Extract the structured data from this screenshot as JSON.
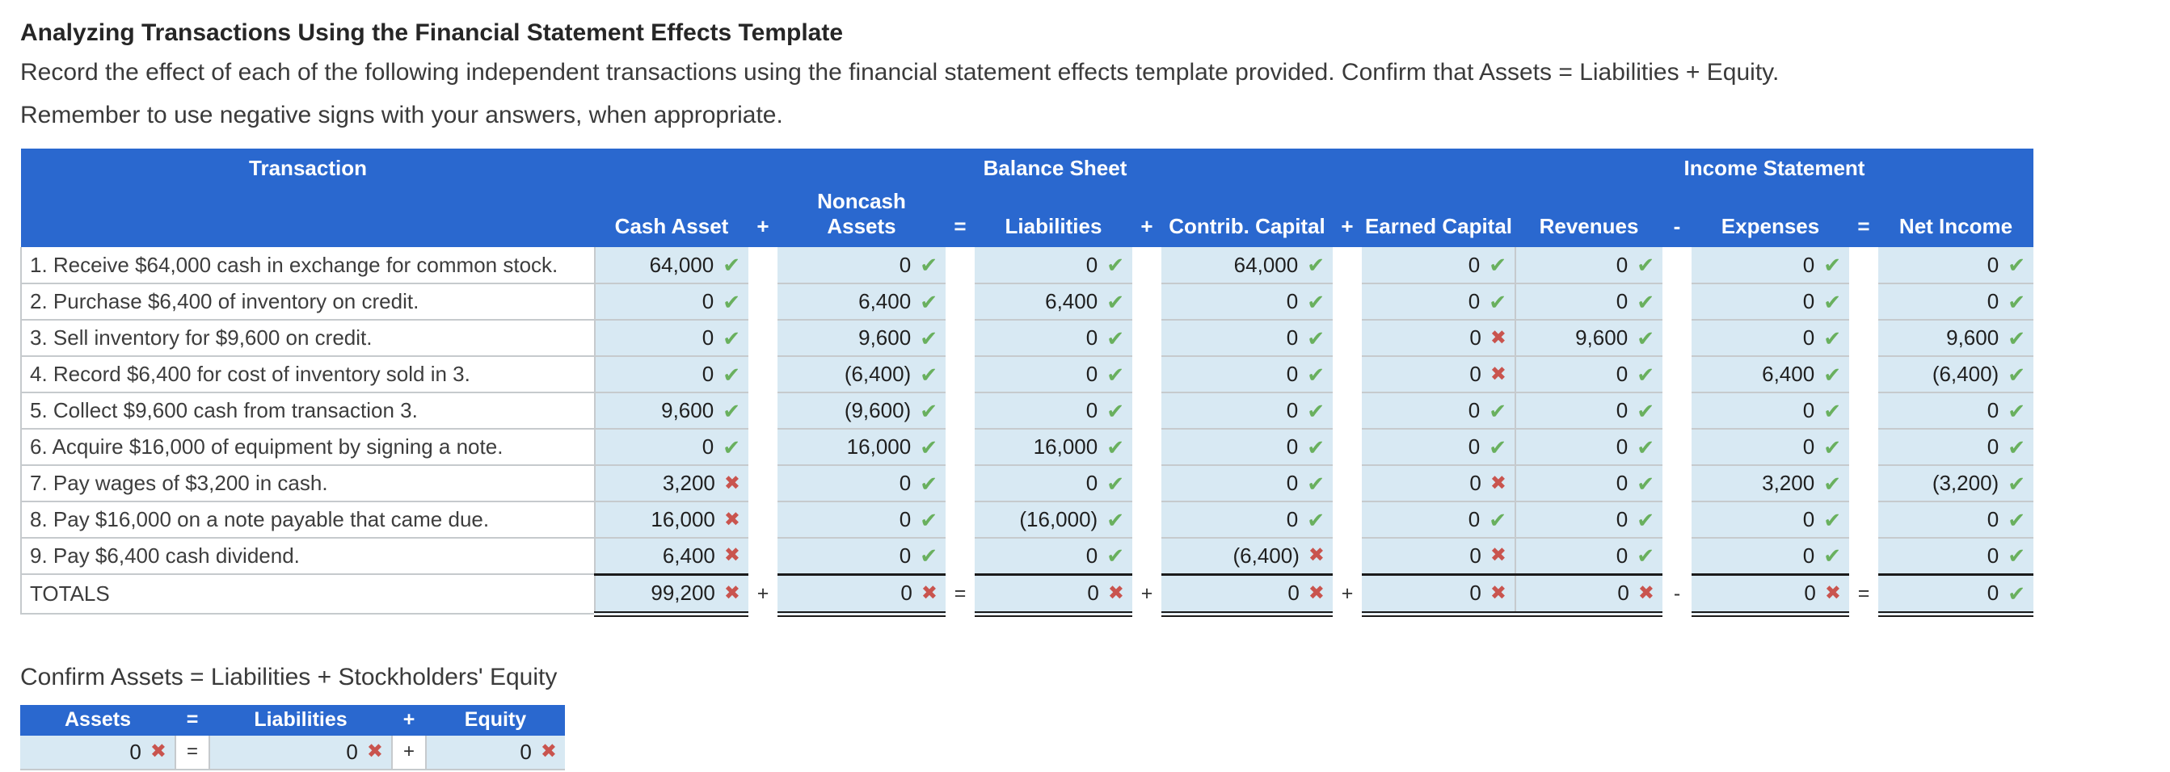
{
  "page": {
    "title": "Analyzing Transactions Using the Financial Statement Effects Template",
    "instructions": "Record the effect of each of the following independent transactions using the financial statement effects template provided. Confirm that Assets = Liabilities + Equity.",
    "note": "Remember to use negative signs with your answers, when appropriate."
  },
  "colors": {
    "header_blue": "#2a68cf",
    "cell_blue": "#d8e9f3",
    "check_green": "#69b05e",
    "cross_red": "#c9544e"
  },
  "icons": {
    "check": "✔",
    "cross": "✖"
  },
  "table": {
    "group_headers": [
      "Balance Sheet",
      "Income Statement"
    ],
    "transaction_header": "Transaction",
    "columns": [
      "Cash Asset",
      "Noncash Assets",
      "Liabilities",
      "Contrib. Capital",
      "Earned Capital",
      "Revenues",
      "Expenses",
      "Net Income"
    ],
    "operators": [
      "+",
      "=",
      "+",
      "+",
      "-",
      "="
    ],
    "rows": [
      {
        "label": "1. Receive $64,000 cash in exchange for common stock.",
        "values": [
          "64,000",
          "0",
          "0",
          "64,000",
          "0",
          "0",
          "0",
          "0"
        ],
        "status": [
          "ok",
          "ok",
          "ok",
          "ok",
          "ok",
          "ok",
          "ok",
          "ok"
        ]
      },
      {
        "label": "2. Purchase $6,400 of inventory on credit.",
        "values": [
          "0",
          "6,400",
          "6,400",
          "0",
          "0",
          "0",
          "0",
          "0"
        ],
        "status": [
          "ok",
          "ok",
          "ok",
          "ok",
          "ok",
          "ok",
          "ok",
          "ok"
        ]
      },
      {
        "label": "3. Sell inventory for $9,600 on credit.",
        "values": [
          "0",
          "9,600",
          "0",
          "0",
          "0",
          "9,600",
          "0",
          "9,600"
        ],
        "status": [
          "ok",
          "ok",
          "ok",
          "ok",
          "bad",
          "ok",
          "ok",
          "ok"
        ]
      },
      {
        "label": "4. Record $6,400 for cost of inventory sold in 3.",
        "values": [
          "0",
          "(6,400)",
          "0",
          "0",
          "0",
          "0",
          "6,400",
          "(6,400)"
        ],
        "status": [
          "ok",
          "ok",
          "ok",
          "ok",
          "bad",
          "ok",
          "ok",
          "ok"
        ]
      },
      {
        "label": "5. Collect $9,600 cash from transaction 3.",
        "values": [
          "9,600",
          "(9,600)",
          "0",
          "0",
          "0",
          "0",
          "0",
          "0"
        ],
        "status": [
          "ok",
          "ok",
          "ok",
          "ok",
          "ok",
          "ok",
          "ok",
          "ok"
        ]
      },
      {
        "label": "6. Acquire $16,000 of equipment by signing a note.",
        "values": [
          "0",
          "16,000",
          "16,000",
          "0",
          "0",
          "0",
          "0",
          "0"
        ],
        "status": [
          "ok",
          "ok",
          "ok",
          "ok",
          "ok",
          "ok",
          "ok",
          "ok"
        ]
      },
      {
        "label": "7. Pay wages of $3,200 in cash.",
        "values": [
          "3,200",
          "0",
          "0",
          "0",
          "0",
          "0",
          "3,200",
          "(3,200)"
        ],
        "status": [
          "bad",
          "ok",
          "ok",
          "ok",
          "bad",
          "ok",
          "ok",
          "ok"
        ]
      },
      {
        "label": "8. Pay $16,000 on a note payable that came due.",
        "values": [
          "16,000",
          "0",
          "(16,000)",
          "0",
          "0",
          "0",
          "0",
          "0"
        ],
        "status": [
          "bad",
          "ok",
          "ok",
          "ok",
          "ok",
          "ok",
          "ok",
          "ok"
        ]
      },
      {
        "label": "9. Pay $6,400 cash dividend.",
        "values": [
          "6,400",
          "0",
          "0",
          "(6,400)",
          "0",
          "0",
          "0",
          "0"
        ],
        "status": [
          "bad",
          "ok",
          "ok",
          "bad",
          "bad",
          "ok",
          "ok",
          "ok"
        ]
      }
    ],
    "totals": {
      "label": "TOTALS",
      "values": [
        "99,200",
        "0",
        "0",
        "0",
        "0",
        "0",
        "0",
        "0"
      ],
      "status": [
        "bad",
        "bad",
        "bad",
        "bad",
        "bad",
        "bad",
        "bad",
        "ok"
      ]
    }
  },
  "confirm": {
    "heading": "Confirm Assets = Liabilities + Stockholders' Equity",
    "columns": [
      "Assets",
      "Liabilities",
      "Equity"
    ],
    "operators": [
      "=",
      "+"
    ],
    "values": [
      "0",
      "0",
      "0"
    ],
    "status": [
      "bad",
      "bad",
      "bad"
    ]
  }
}
